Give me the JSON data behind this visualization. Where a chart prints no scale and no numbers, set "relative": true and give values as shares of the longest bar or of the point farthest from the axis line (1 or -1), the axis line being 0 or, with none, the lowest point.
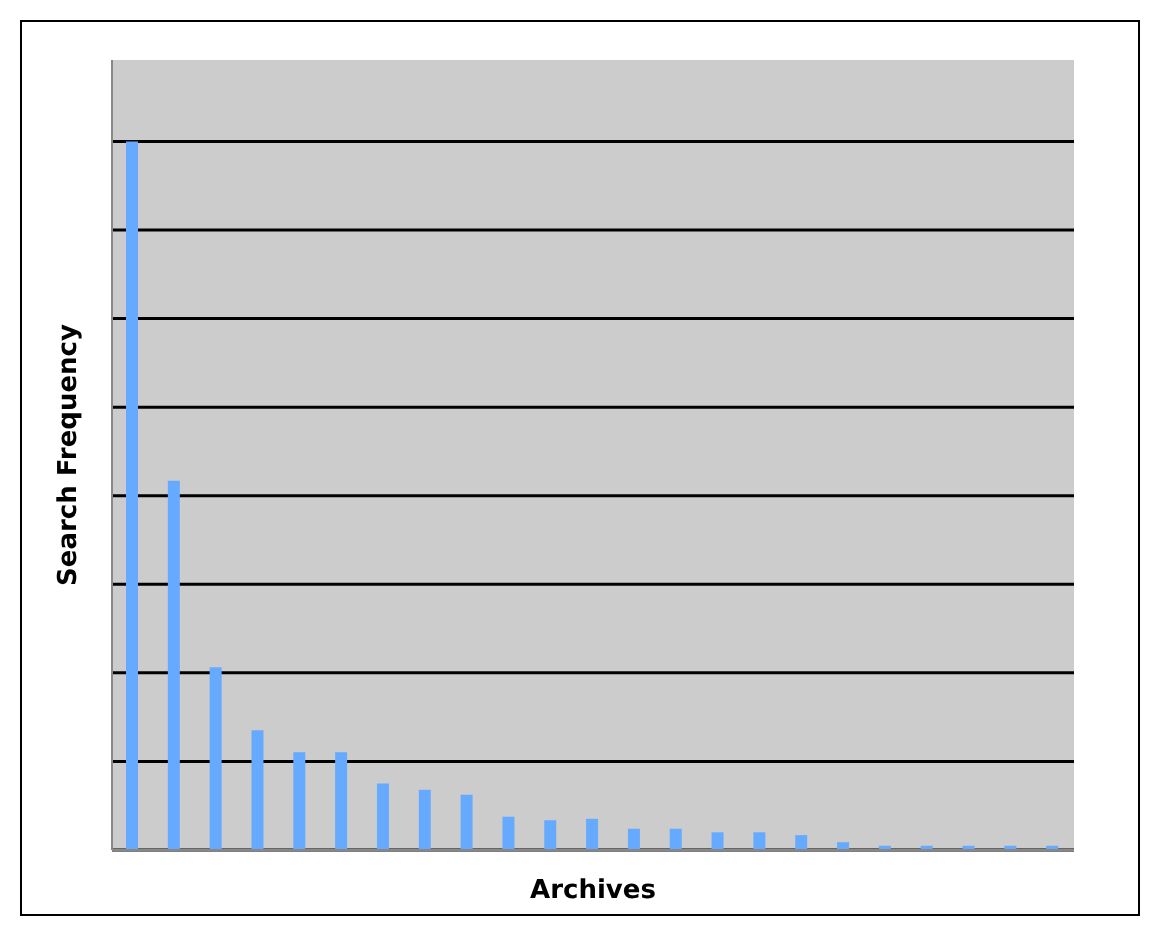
{
  "chart_data": {
    "type": "bar",
    "xlabel": "Archives",
    "ylabel": "Search Frequency",
    "relative": true,
    "grid": "y",
    "color": "#66aaff",
    "categories": [
      null,
      null,
      null,
      null,
      null,
      null,
      null,
      null,
      null,
      null,
      null,
      null,
      null,
      null,
      null,
      null,
      null,
      null,
      null,
      null,
      null,
      null,
      null
    ],
    "values": [
      1,
      0.521,
      0.258,
      0.169,
      0.138,
      0.138,
      0.094,
      0.085,
      0.078,
      0.047,
      0.042,
      0.044,
      0.03,
      0.03,
      0.025,
      0.025,
      0.021,
      0.011,
      0.006,
      0.006,
      0.006,
      0.006,
      0.006
    ]
  }
}
